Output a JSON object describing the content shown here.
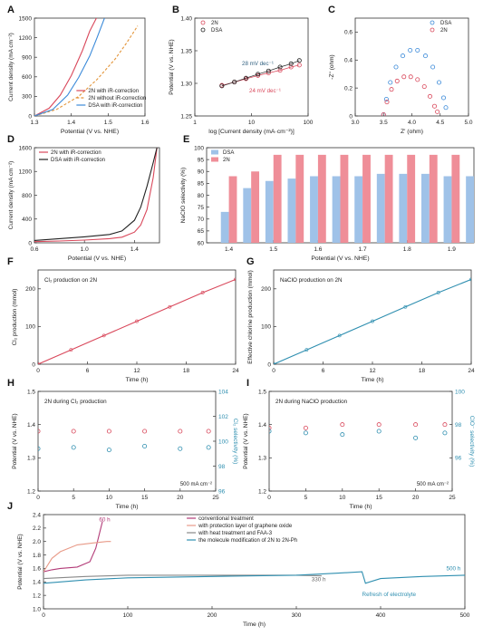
{
  "colors": {
    "red": "#d9485b",
    "blue": "#3b8ad9",
    "black": "#222222",
    "orange": "#e3953a",
    "purple": "#b23a77",
    "peach": "#e89a88",
    "teal": "#2f8fb0",
    "grey": "#888888",
    "bar_blue": "#9fc2e8",
    "bar_red": "#ef8e98"
  },
  "chart_data": [
    {
      "panel": "A",
      "type": "line",
      "xlabel": "Potential (V vs. NHE)",
      "ylabel": "Current density (mA cm⁻²)",
      "xlim": [
        1.3,
        1.6
      ],
      "ylim": [
        0,
        1500
      ],
      "xticks": [
        "1.3",
        "1.4",
        "1.5",
        "1.6"
      ],
      "yticks": [
        "0",
        "300",
        "600",
        "900",
        "1200",
        "1500"
      ],
      "legend": "lower-right",
      "series": [
        {
          "name": "2N with iR-correction",
          "color": "red",
          "style": "solid",
          "x": [
            1.3,
            1.34,
            1.37,
            1.4,
            1.43,
            1.45,
            1.47
          ],
          "y": [
            0,
            120,
            320,
            620,
            1000,
            1300,
            1520
          ]
        },
        {
          "name": "2N without iR-correction",
          "color": "orange",
          "style": "dashed",
          "x": [
            1.3,
            1.36,
            1.42,
            1.47,
            1.52,
            1.55,
            1.58
          ],
          "y": [
            0,
            100,
            300,
            560,
            880,
            1120,
            1380
          ]
        },
        {
          "name": "DSA with iR-correction",
          "color": "blue",
          "style": "solid",
          "x": [
            1.3,
            1.35,
            1.39,
            1.42,
            1.45,
            1.47,
            1.49
          ],
          "y": [
            0,
            100,
            320,
            590,
            920,
            1200,
            1500
          ]
        }
      ]
    },
    {
      "panel": "B",
      "type": "scatter",
      "xlabel": "log [Current density (mA·cm⁻²)]",
      "ylabel": "Potential (V vs. NHE)",
      "xlim": [
        1,
        100
      ],
      "xscale": "log",
      "ylim": [
        1.25,
        1.4
      ],
      "xticks": [
        "1",
        "10",
        "100"
      ],
      "yticks": [
        "1.25",
        "1.30",
        "1.35",
        "1.40"
      ],
      "legend": "top-left",
      "annotations": [
        "28 mV dec⁻¹",
        "24 mV dec⁻¹"
      ],
      "series": [
        {
          "name": "2N",
          "color": "red",
          "x": [
            3,
            5,
            8,
            13,
            20,
            32,
            50,
            70
          ],
          "y": [
            1.297,
            1.302,
            1.307,
            1.312,
            1.316,
            1.32,
            1.325,
            1.328
          ]
        },
        {
          "name": "DSA",
          "color": "black",
          "x": [
            3,
            5,
            8,
            13,
            20,
            32,
            50,
            70
          ],
          "y": [
            1.296,
            1.302,
            1.308,
            1.314,
            1.319,
            1.325,
            1.33,
            1.335
          ]
        }
      ]
    },
    {
      "panel": "C",
      "type": "scatter",
      "xlabel": "Z' (ohm)",
      "ylabel": "-Z'' (ohm)",
      "xlim": [
        3.0,
        5.0
      ],
      "ylim": [
        0,
        0.7
      ],
      "xticks": [
        "3.0",
        "3.5",
        "4.0",
        "4.5",
        "5.0"
      ],
      "yticks": [
        "0",
        "0.2",
        "0.4",
        "0.6"
      ],
      "legend": "top-right",
      "series": [
        {
          "name": "DSA",
          "color": "blue",
          "x": [
            3.5,
            3.55,
            3.62,
            3.72,
            3.84,
            3.97,
            4.1,
            4.24,
            4.37,
            4.48,
            4.56,
            4.6
          ],
          "y": [
            0.01,
            0.12,
            0.24,
            0.35,
            0.43,
            0.47,
            0.47,
            0.43,
            0.35,
            0.24,
            0.13,
            0.06
          ]
        },
        {
          "name": "2N",
          "color": "red",
          "x": [
            3.5,
            3.56,
            3.64,
            3.74,
            3.86,
            3.98,
            4.1,
            4.22,
            4.32,
            4.4,
            4.45
          ],
          "y": [
            0.01,
            0.1,
            0.19,
            0.25,
            0.28,
            0.28,
            0.26,
            0.21,
            0.14,
            0.07,
            0.03
          ]
        }
      ]
    },
    {
      "panel": "D",
      "type": "line",
      "xlabel": "Potential (V vs. NHE)",
      "ylabel": "Current density (mA cm⁻²)",
      "xlim": [
        0.6,
        1.6
      ],
      "ylim": [
        0,
        1600
      ],
      "xticks": [
        "0.6",
        "1.0",
        "1.4"
      ],
      "yticks": [
        "0",
        "400",
        "800",
        "1200",
        "1600"
      ],
      "legend": "top-left",
      "series": [
        {
          "name": "2N with iR-correction",
          "color": "red",
          "style": "solid",
          "x": [
            0.6,
            0.8,
            1.0,
            1.2,
            1.3,
            1.4,
            1.45,
            1.5,
            1.55,
            1.58
          ],
          "y": [
            20,
            30,
            45,
            70,
            95,
            180,
            300,
            560,
            1100,
            1600
          ]
        },
        {
          "name": "DSA with iR-correction",
          "color": "black",
          "style": "solid",
          "x": [
            0.6,
            0.8,
            1.0,
            1.2,
            1.3,
            1.4,
            1.45,
            1.5,
            1.55,
            1.58
          ],
          "y": [
            40,
            70,
            100,
            140,
            200,
            380,
            600,
            950,
            1350,
            1600
          ]
        }
      ]
    },
    {
      "panel": "E",
      "type": "bar",
      "xlabel": "Potential (V vs. NHE)",
      "ylabel": "NaClO selectivity (%)",
      "xlim": [
        1.35,
        1.95
      ],
      "ylim": [
        60,
        100
      ],
      "xticks": [
        "1.4",
        "1.5",
        "1.6",
        "1.7",
        "1.8",
        "1.9"
      ],
      "yticks": [
        "60",
        "65",
        "70",
        "75",
        "80",
        "85",
        "90",
        "95",
        "100"
      ],
      "legend": "top-left",
      "categories": [
        "1.40",
        "1.45",
        "1.50",
        "1.55",
        "1.60",
        "1.65",
        "1.70",
        "1.75",
        "1.80",
        "1.85",
        "1.90",
        "1.95"
      ],
      "series": [
        {
          "name": "DSA",
          "color": "bar_blue",
          "values": [
            73,
            83,
            86,
            87,
            88,
            88,
            88,
            89,
            89,
            89,
            88,
            88
          ]
        },
        {
          "name": "2N",
          "color": "bar_red",
          "values": [
            88,
            90,
            97,
            97,
            97,
            97,
            97,
            97,
            97,
            97,
            97,
            97
          ]
        }
      ]
    },
    {
      "panel": "F",
      "type": "line",
      "annotation": "Cl₂ production on 2N",
      "xlabel": "Time (h)",
      "ylabel": "Cl₂ production (mmol)",
      "xlim": [
        0,
        24
      ],
      "ylim": [
        0,
        250
      ],
      "xticks": [
        "0",
        "6",
        "12",
        "18",
        "24"
      ],
      "yticks": [
        "0",
        "100",
        "200"
      ],
      "series": [
        {
          "color": "red",
          "x": [
            0,
            4,
            8,
            12,
            16,
            20,
            24
          ],
          "y": [
            0,
            38,
            76,
            114,
            152,
            190,
            225
          ]
        }
      ]
    },
    {
      "panel": "G",
      "type": "line",
      "annotation": "NaClO production on 2N",
      "xlabel": "Time (h)",
      "ylabel": "Effective chlorine production (mmol)",
      "xlim": [
        0,
        24
      ],
      "ylim": [
        0,
        250
      ],
      "xticks": [
        "0",
        "6",
        "12",
        "18",
        "24"
      ],
      "yticks": [
        "0",
        "100",
        "200"
      ],
      "series": [
        {
          "color": "teal",
          "x": [
            0,
            4,
            8,
            12,
            16,
            20,
            24
          ],
          "y": [
            0,
            38,
            76,
            114,
            152,
            190,
            225
          ]
        }
      ]
    },
    {
      "panel": "H",
      "type": "scatter",
      "annotation": "2N during Cl₂ production",
      "note": "500 mA cm⁻²",
      "xlabel": "Time (h)",
      "ylabel": "Potential (V vs. NHE)",
      "ylabel_right": "Cl₂ selectivity (%)",
      "xlim": [
        0,
        25
      ],
      "ylim": [
        1.2,
        1.5
      ],
      "ylim_right": [
        96,
        104
      ],
      "xticks": [
        "0",
        "5",
        "10",
        "15",
        "20",
        "25"
      ],
      "yticks": [
        "1.2",
        "1.3",
        "1.4",
        "1.5"
      ],
      "yticks_right": [
        "96",
        "98",
        "100",
        "102",
        "104"
      ],
      "series": [
        {
          "name": "Potential",
          "color": "red",
          "x": [
            0,
            5,
            10,
            15,
            20,
            24
          ],
          "y": [
            1.38,
            1.38,
            1.38,
            1.38,
            1.38,
            1.38
          ]
        },
        {
          "name": "Selectivity",
          "color": "teal",
          "axis": "right",
          "x": [
            0,
            5,
            10,
            15,
            20,
            24
          ],
          "y": [
            99.4,
            99.5,
            99.3,
            99.6,
            99.4,
            99.5
          ]
        }
      ]
    },
    {
      "panel": "I",
      "type": "scatter",
      "annotation": "2N during NaClO production",
      "note": "500 mA cm⁻²",
      "xlabel": "Time (h)",
      "ylabel": "Potential (V vs. NHE)",
      "ylabel_right": "ClO⁻ selectivity (%)",
      "xlim": [
        0,
        25
      ],
      "ylim": [
        1.2,
        1.5
      ],
      "ylim_right": [
        94,
        100
      ],
      "xticks": [
        "0",
        "5",
        "10",
        "15",
        "20",
        "25"
      ],
      "yticks": [
        "1.2",
        "1.3",
        "1.4",
        "1.5"
      ],
      "yticks_right": [
        "96",
        "98",
        "100"
      ],
      "series": [
        {
          "name": "Potential",
          "color": "red",
          "x": [
            0,
            5,
            10,
            15,
            20,
            24
          ],
          "y": [
            1.39,
            1.39,
            1.4,
            1.4,
            1.4,
            1.4
          ]
        },
        {
          "name": "Selectivity",
          "color": "teal",
          "axis": "right",
          "x": [
            0,
            5,
            10,
            15,
            20,
            24
          ],
          "y": [
            97.6,
            97.5,
            97.4,
            97.6,
            97.2,
            97.5
          ]
        }
      ]
    },
    {
      "panel": "J",
      "type": "line",
      "xlabel": "Time (h)",
      "ylabel": "Potential (V vs. NHE)",
      "xlim": [
        0,
        500
      ],
      "ylim": [
        1.0,
        2.4
      ],
      "xticks": [
        "0",
        "100",
        "200",
        "300",
        "400",
        "500"
      ],
      "yticks": [
        "1.0",
        "1.2",
        "1.4",
        "1.6",
        "1.8",
        "2.0",
        "2.2",
        "2.4"
      ],
      "legend": "top",
      "annotations": [
        "60 h",
        "330 h",
        "500 h",
        "Refresh of electrolyte"
      ],
      "series": [
        {
          "name": "conventional treatment",
          "color": "purple",
          "x": [
            0,
            10,
            20,
            40,
            55,
            62,
            66,
            70
          ],
          "y": [
            1.55,
            1.58,
            1.6,
            1.62,
            1.7,
            1.9,
            2.1,
            2.3
          ]
        },
        {
          "name": "with protection layer of graphene oxide",
          "color": "peach",
          "x": [
            0,
            10,
            20,
            40,
            60,
            75,
            80
          ],
          "y": [
            1.55,
            1.75,
            1.85,
            1.95,
            1.98,
            2.0,
            2.0
          ]
        },
        {
          "name": "with heat treatment and FAA-3",
          "color": "grey",
          "x": [
            0,
            50,
            100,
            150,
            200,
            250,
            300,
            330
          ],
          "y": [
            1.45,
            1.48,
            1.5,
            1.5,
            1.5,
            1.5,
            1.5,
            1.49
          ]
        },
        {
          "name": "the molecule modification of 2N to 2N-Ph",
          "color": "teal",
          "x": [
            0,
            50,
            100,
            150,
            200,
            250,
            300,
            350,
            378,
            382,
            400,
            450,
            500
          ],
          "y": [
            1.38,
            1.43,
            1.46,
            1.47,
            1.48,
            1.49,
            1.5,
            1.53,
            1.55,
            1.38,
            1.45,
            1.48,
            1.5
          ]
        }
      ]
    }
  ]
}
